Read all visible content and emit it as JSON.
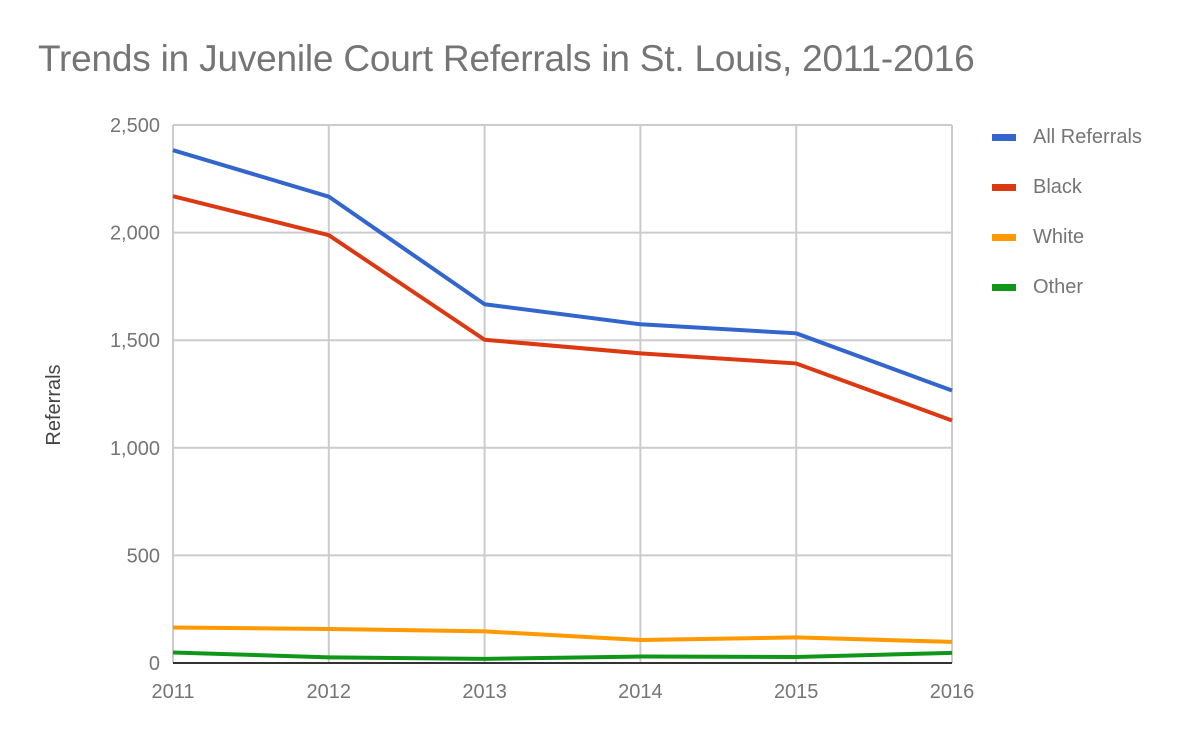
{
  "chart_data": {
    "type": "line",
    "title": "Trends in Juvenile Court Referrals in St. Louis, 2011-2016",
    "xlabel": "",
    "ylabel": "Referrals",
    "x": [
      "2011",
      "2012",
      "2013",
      "2014",
      "2015",
      "2016"
    ],
    "ylim": [
      0,
      2500
    ],
    "yticks": [
      "0",
      "500",
      "1,000",
      "1,500",
      "2,000",
      "2,500"
    ],
    "ytick_values": [
      0,
      500,
      1000,
      1500,
      2000,
      2500
    ],
    "grid": true,
    "legend_position": "right",
    "series": [
      {
        "name": "All Referrals",
        "color": "#3366cc",
        "values": [
          2383,
          2167,
          1667,
          1574,
          1532,
          1266
        ]
      },
      {
        "name": "Black",
        "color": "#dc3912",
        "values": [
          2169,
          1988,
          1502,
          1439,
          1392,
          1127
        ]
      },
      {
        "name": "White",
        "color": "#ff9900",
        "values": [
          165,
          158,
          147,
          107,
          119,
          98
        ]
      },
      {
        "name": "Other",
        "color": "#109618",
        "values": [
          49,
          26,
          19,
          30,
          28,
          47
        ]
      }
    ]
  }
}
